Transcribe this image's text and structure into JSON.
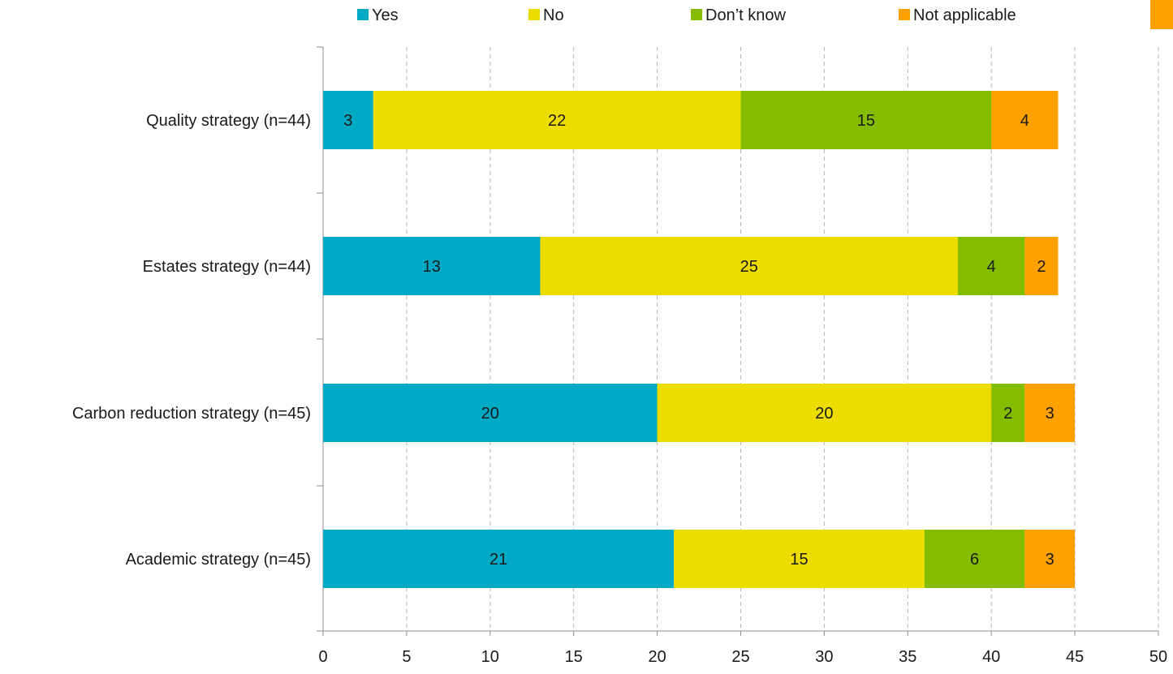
{
  "chart_data": {
    "type": "bar",
    "orientation": "horizontal",
    "stacked": true,
    "title": "",
    "xlabel": "",
    "ylabel": "",
    "xlim": [
      0,
      50
    ],
    "x_ticks": [
      0,
      5,
      10,
      15,
      20,
      25,
      30,
      35,
      40,
      45,
      50
    ],
    "grid": "vertical dashed",
    "legend_position": "top",
    "categories": [
      "Quality strategy (n=44)",
      "Estates strategy (n=44)",
      "Carbon reduction strategy (n=45)",
      "Academic strategy (n=45)"
    ],
    "series": [
      {
        "name": "Yes",
        "color": "#00A9C4",
        "values": [
          3,
          13,
          20,
          21
        ]
      },
      {
        "name": "No",
        "color": "#EDDC00",
        "values": [
          22,
          25,
          20,
          15
        ]
      },
      {
        "name": "Don’t know",
        "color": "#84BC00",
        "values": [
          15,
          4,
          2,
          6
        ]
      },
      {
        "name": "Not applicable",
        "color": "#FFA100",
        "values": [
          4,
          2,
          3,
          3
        ]
      }
    ],
    "extra_legend_swatch_color": "#FFA100"
  }
}
